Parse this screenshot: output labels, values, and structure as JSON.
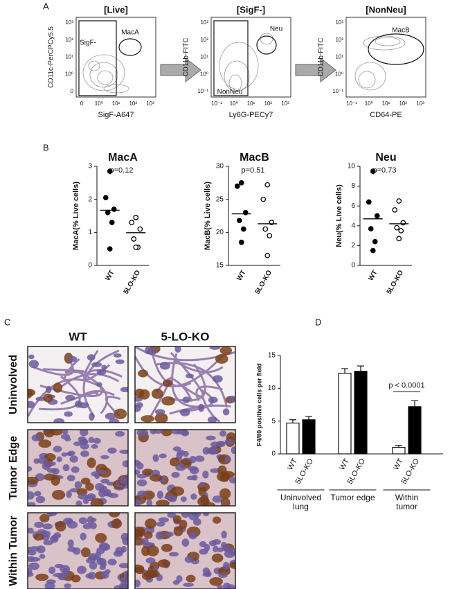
{
  "panel_a": {
    "label": "A",
    "plots": [
      {
        "title": "[Live]",
        "x_label": "SigF-A647",
        "y_label": "CD11c-PerCPCy5.5",
        "gates": [
          "SigF-",
          "MacA"
        ],
        "xticks": [
          "0",
          "10⁰",
          "10¹",
          "10²",
          "10³"
        ],
        "yticks": [
          "0",
          "10⁰",
          "10¹",
          "10²",
          "10³"
        ]
      },
      {
        "title": "[SigF-]",
        "x_label": "Ly6G-PECy7",
        "y_label": "CD11b-FITC",
        "gates": [
          "NonNeu",
          "Neu"
        ],
        "xticks": [
          "10⁻¹",
          "10⁰",
          "10¹",
          "10²",
          "10³"
        ],
        "yticks": [
          "10⁻¹",
          "10⁰",
          "10¹",
          "10²",
          "10³"
        ]
      },
      {
        "title": "[NonNeu]",
        "x_label": "CD64-PE",
        "y_label": "CD11b-FITC",
        "gates": [
          "MacB"
        ],
        "xticks": [
          "10⁻¹",
          "10⁰",
          "10¹",
          "10²",
          "10³"
        ],
        "yticks": [
          "10⁻¹",
          "10⁰",
          "10¹",
          "10²",
          "10³"
        ]
      }
    ]
  },
  "panel_b_label": "B",
  "chart_data": [
    {
      "type": "dot",
      "title": "MacA",
      "annotation": "p=0.12",
      "y_label": "MacA(% Live cells)",
      "categories": [
        "WT",
        "5LO-KO"
      ],
      "markers": [
        "filled",
        "open"
      ],
      "color": "#000000",
      "values": [
        [
          2.85,
          2.05,
          1.7,
          1.6,
          1.3,
          0.5
        ],
        [
          1.45,
          1.3,
          1.1,
          0.8,
          0.55,
          0.55
        ]
      ],
      "means": [
        1.67,
        0.99
      ],
      "ylim": [
        0,
        3
      ],
      "yticks": [
        0,
        1,
        2,
        3
      ]
    },
    {
      "type": "dot",
      "title": "MacB",
      "annotation": "p=0.51",
      "y_label": "MacB(% Live cells)",
      "categories": [
        "WT",
        "5LO-KO"
      ],
      "markers": [
        "filled",
        "open"
      ],
      "color": "#000000",
      "values": [
        [
          27.5,
          27,
          23,
          21.8,
          20.5,
          18.5
        ],
        [
          27.2,
          25,
          21.5,
          20.5,
          19.5,
          16.5
        ]
      ],
      "means": [
        22.8,
        21.3
      ],
      "ylim": [
        15,
        30
      ],
      "yticks": [
        15,
        20,
        25,
        30
      ]
    },
    {
      "type": "dot",
      "title": "Neu",
      "annotation": "p=0.73",
      "y_label": "Neu(% Live cells)",
      "categories": [
        "WT",
        "5LO-KO"
      ],
      "markers": [
        "filled",
        "open"
      ],
      "color": "#000000",
      "values": [
        [
          9.5,
          6.4,
          5.0,
          3.7,
          2.4,
          1.5
        ],
        [
          6.5,
          5.6,
          4.3,
          3.8,
          3.5,
          2.7
        ]
      ],
      "means": [
        4.7,
        4.2
      ],
      "ylim": [
        0,
        10
      ],
      "yticks": [
        0,
        2,
        4,
        6,
        8,
        10
      ]
    },
    {
      "type": "bar",
      "panel_label": "D",
      "y_label": "F4/80 positive cells per field",
      "categories": [
        "WT",
        "5LO-KO",
        "WT",
        "5LO-KO",
        "WT",
        "5LO-KO"
      ],
      "values": [
        4.7,
        5.2,
        12.3,
        12.6,
        1.0,
        7.2
      ],
      "errors": [
        0.5,
        0.5,
        0.7,
        0.8,
        0.3,
        0.9
      ],
      "colors": [
        "#ffffff",
        "#000000",
        "#ffffff",
        "#000000",
        "#ffffff",
        "#000000"
      ],
      "groups": [
        "Uninvolved lung",
        "Tumor edge",
        "Within tumor"
      ],
      "annotation": "p < 0.0001",
      "ylim": [
        0,
        15
      ],
      "yticks": [
        0,
        5,
        10,
        15
      ]
    }
  ],
  "panel_c": {
    "label": "C",
    "columns": [
      "WT",
      "5-LO-KO"
    ],
    "rows": [
      "Uninvolved",
      "Tumor Edge",
      "Within Tumor"
    ]
  }
}
